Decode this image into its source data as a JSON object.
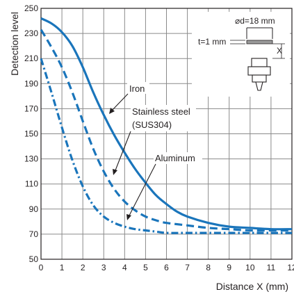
{
  "chart_data": {
    "type": "line",
    "xlabel": "Distance X (mm)",
    "ylabel": "Detection level",
    "xlim": [
      0,
      12
    ],
    "ylim": [
      50,
      250
    ],
    "xticks": [
      0,
      1,
      2,
      3,
      4,
      5,
      6,
      7,
      8,
      9,
      10,
      11,
      12
    ],
    "yticks": [
      50,
      70,
      90,
      110,
      130,
      150,
      170,
      190,
      210,
      230,
      250
    ],
    "grid": true,
    "colors": {
      "curve": "#1a75bb",
      "grid": "#8a8a8a",
      "text": "#231f20"
    },
    "series": [
      {
        "name": "Iron",
        "style": "solid",
        "x": [
          0,
          0.5,
          1,
          1.5,
          2,
          2.5,
          3,
          3.5,
          4,
          4.5,
          5,
          5.5,
          6,
          6.5,
          7,
          8,
          9,
          10,
          11,
          12
        ],
        "y": [
          242,
          238,
          231,
          220,
          203,
          183,
          165,
          149,
          135,
          122,
          111,
          101,
          94,
          88,
          84,
          79,
          76,
          75,
          74,
          74
        ]
      },
      {
        "name": "Stainless steel (SUS304)",
        "style": "dashed",
        "x": [
          0,
          0.5,
          1,
          1.5,
          2,
          2.5,
          3,
          3.5,
          4,
          4.5,
          5,
          5.5,
          6,
          7,
          8,
          9,
          10,
          11,
          12
        ],
        "y": [
          233,
          219,
          203,
          183,
          160,
          138,
          120,
          106,
          96,
          89,
          84,
          81,
          79,
          77,
          75,
          74,
          73,
          73,
          73
        ]
      },
      {
        "name": "Aluminum",
        "style": "dash-dot",
        "x": [
          0,
          0.5,
          1,
          1.5,
          2,
          2.5,
          3,
          3.5,
          4,
          4.5,
          5,
          5.5,
          6,
          7,
          8,
          9,
          10,
          11,
          12
        ],
        "y": [
          210,
          183,
          155,
          129,
          108,
          93,
          84,
          79,
          76,
          74,
          73,
          72,
          71,
          71,
          71,
          71,
          71,
          71,
          71
        ]
      }
    ],
    "annotations": {
      "iron": "Iron",
      "stainless_line1": "Stainless steel",
      "stainless_line2": "(SUS304)",
      "aluminum": "Aluminum"
    },
    "inset": {
      "diameter_label": "⌀d=18 mm",
      "thickness_label": "t=1 mm",
      "distance_label": "X"
    }
  }
}
